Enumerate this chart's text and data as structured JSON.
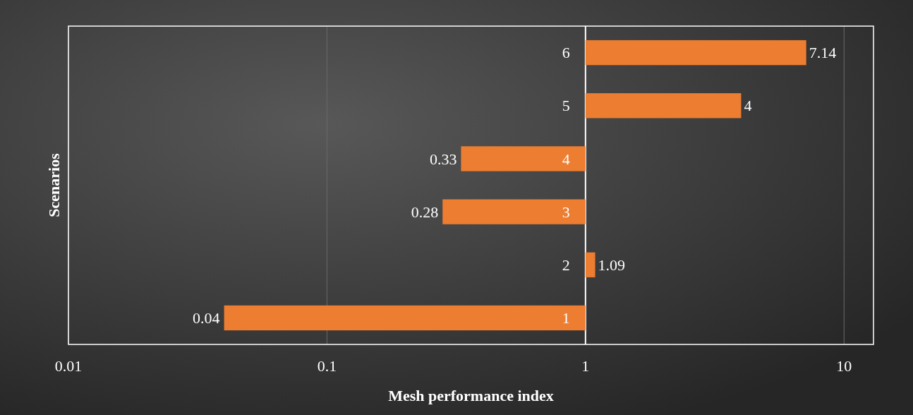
{
  "chart_data": {
    "type": "bar",
    "orientation": "horizontal",
    "categories": [
      "6",
      "5",
      "4",
      "3",
      "2",
      "1"
    ],
    "base": [
      1,
      1,
      1,
      1,
      1,
      1
    ],
    "values": [
      6.14,
      3,
      -0.67,
      -0.72,
      0.09,
      -0.96
    ],
    "value_labels": [
      "7.14",
      "4",
      "0.33",
      "0.28",
      "1.09",
      "0.04"
    ],
    "color": "#ed7d31",
    "log": "x",
    "xlim": [
      0.01,
      13
    ],
    "xticks": [
      0.01,
      0.1,
      1,
      10
    ],
    "grid": "x",
    "xlabel": "Mesh performance index",
    "ylabel": "Scenarios"
  }
}
